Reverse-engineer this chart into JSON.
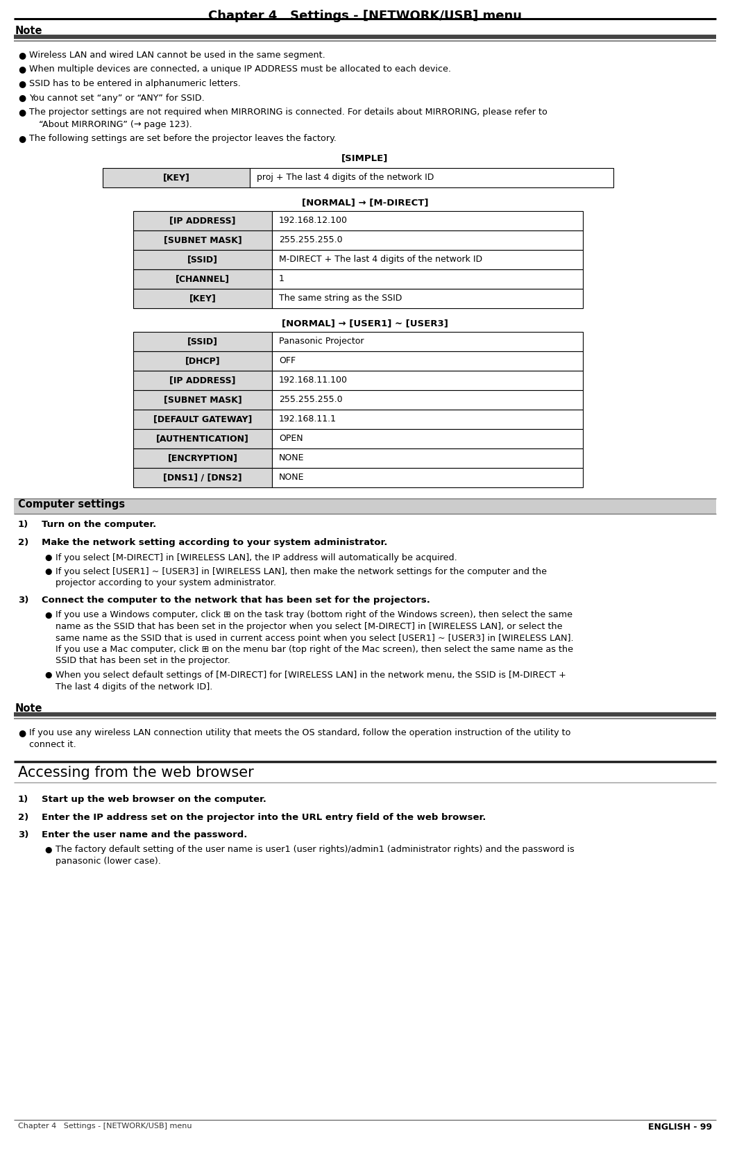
{
  "page_title": "Chapter 4   Settings - [NETWORK/USB] menu",
  "bg_color": "#ffffff",
  "note_bullets": [
    "Wireless LAN and wired LAN cannot be used in the same segment.",
    "When multiple devices are connected, a unique IP ADDRESS must be allocated to each device.",
    "SSID has to be entered in alphanumeric letters.",
    "You cannot set “any” or “ANY” for SSID.",
    "The projector settings are not required when MIRRORING is connected. For details about MIRRORING, please refer to\n“About MIRRORING” (→ page 123).",
    "The following settings are set before the projector leaves the factory."
  ],
  "simple_label": "[SIMPLE]",
  "simple_table": [
    [
      "[KEY]",
      "proj + The last 4 digits of the network ID"
    ]
  ],
  "mdirect_label": "[NORMAL] → [M-DIRECT]",
  "mdirect_table": [
    [
      "[IP ADDRESS]",
      "192.168.12.100"
    ],
    [
      "[SUBNET MASK]",
      "255.255.255.0"
    ],
    [
      "[SSID]",
      "M-DIRECT + The last 4 digits of the network ID"
    ],
    [
      "[CHANNEL]",
      "1"
    ],
    [
      "[KEY]",
      "The same string as the SSID"
    ]
  ],
  "user_label": "[NORMAL] → [USER1] ~ [USER3]",
  "user_table": [
    [
      "[SSID]",
      "Panasonic Projector"
    ],
    [
      "[DHCP]",
      "OFF"
    ],
    [
      "[IP ADDRESS]",
      "192.168.11.100"
    ],
    [
      "[SUBNET MASK]",
      "255.255.255.0"
    ],
    [
      "[DEFAULT GATEWAY]",
      "192.168.11.1"
    ],
    [
      "[AUTHENTICATION]",
      "OPEN"
    ],
    [
      "[ENCRYPTION]",
      "NONE"
    ],
    [
      "[DNS1] / [DNS2]",
      "NONE"
    ]
  ],
  "computer_settings_title": "Computer settings",
  "computer_steps": [
    {
      "num": "1)",
      "bold": "Turn on the computer.",
      "bullets": []
    },
    {
      "num": "2)",
      "bold": "Make the network setting according to your system administrator.",
      "bullets": [
        [
          "If you select [M-DIRECT] in [WIRELESS LAN], the IP address will automatically be acquired."
        ],
        [
          "If you select [USER1] ~ [USER3] in [WIRELESS LAN], then make the network settings for the computer and the",
          "projector according to your system administrator."
        ]
      ]
    },
    {
      "num": "3)",
      "bold": "Connect the computer to the network that has been set for the projectors.",
      "bullets": [
        [
          "If you use a Windows computer, click ⊞ on the task tray (bottom right of the Windows screen), then select the same",
          "name as the SSID that has been set in the projector when you select [M-DIRECT] in [WIRELESS LAN], or select the",
          "same name as the SSID that is used in current access point when you select [USER1] ~ [USER3] in [WIRELESS LAN].",
          "If you use a Mac computer, click ⊞ on the menu bar (top right of the Mac screen), then select the same name as the",
          "SSID that has been set in the projector."
        ],
        [
          "When you select default settings of [M-DIRECT] for [WIRELESS LAN] in the network menu, the SSID is [M-DIRECT +",
          "The last 4 digits of the network ID]."
        ]
      ]
    }
  ],
  "note2_bullets": [
    [
      "If you use any wireless LAN connection utility that meets the OS standard, follow the operation instruction of the utility to",
      "connect it."
    ]
  ],
  "web_browser_title": "Accessing from the web browser",
  "web_steps": [
    {
      "num": "1)",
      "bold": "Start up the web browser on the computer.",
      "bullets": []
    },
    {
      "num": "2)",
      "bold": "Enter the IP address set on the projector into the URL entry field of the web browser.",
      "bullets": []
    },
    {
      "num": "3)",
      "bold": "Enter the user name and the password.",
      "bullets": [
        [
          "The factory default setting of the user name is user1 (user rights)/admin1 (administrator rights) and the password is",
          "panasonic (lower case)."
        ]
      ]
    }
  ],
  "footer_left": "ENGLISH - 99",
  "footer_right": "Chapter 4   Settings - [NETWORK/USB] menu",
  "table_header_color": "#d8d8d8",
  "table_border_color": "#000000"
}
